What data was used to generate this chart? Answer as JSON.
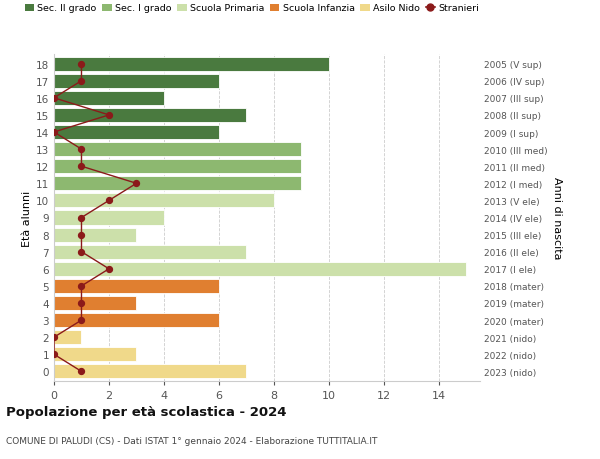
{
  "ages": [
    0,
    1,
    2,
    3,
    4,
    5,
    6,
    7,
    8,
    9,
    10,
    11,
    12,
    13,
    14,
    15,
    16,
    17,
    18
  ],
  "right_labels": [
    "2023 (nido)",
    "2022 (nido)",
    "2021 (nido)",
    "2020 (mater)",
    "2019 (mater)",
    "2018 (mater)",
    "2017 (I ele)",
    "2016 (II ele)",
    "2015 (III ele)",
    "2014 (IV ele)",
    "2013 (V ele)",
    "2012 (I med)",
    "2011 (II med)",
    "2010 (III med)",
    "2009 (I sup)",
    "2008 (II sup)",
    "2007 (III sup)",
    "2006 (IV sup)",
    "2005 (V sup)"
  ],
  "bar_values": [
    7,
    3,
    1,
    6,
    3,
    6,
    15,
    7,
    3,
    4,
    8,
    9,
    9,
    9,
    6,
    7,
    4,
    6,
    10
  ],
  "stranieri_values": [
    1,
    0,
    0,
    1,
    1,
    1,
    2,
    1,
    1,
    1,
    2,
    3,
    1,
    1,
    0,
    2,
    0,
    1,
    1
  ],
  "bar_colors": [
    "#f0d98a",
    "#f0d98a",
    "#f0d98a",
    "#e07f30",
    "#e07f30",
    "#e07f30",
    "#cce0aa",
    "#cce0aa",
    "#cce0aa",
    "#cce0aa",
    "#cce0aa",
    "#8db870",
    "#8db870",
    "#8db870",
    "#4a7a3f",
    "#4a7a3f",
    "#4a7a3f",
    "#4a7a3f",
    "#4a7a3f"
  ],
  "legend_labels": [
    "Sec. II grado",
    "Sec. I grado",
    "Scuola Primaria",
    "Scuola Infanzia",
    "Asilo Nido",
    "Stranieri"
  ],
  "legend_colors": [
    "#4a7a3f",
    "#8db870",
    "#cce0aa",
    "#e07f30",
    "#f0d98a",
    "#8b1a1a"
  ],
  "stranieri_color": "#8b1a1a",
  "title": "Popolazione per età scolastica - 2024",
  "subtitle": "COMUNE DI PALUDI (CS) - Dati ISTAT 1° gennaio 2024 - Elaborazione TUTTITALIA.IT",
  "ylabel": "Età alunni",
  "right_ylabel": "Anni di nascita",
  "xlabel_vals": [
    0,
    2,
    4,
    6,
    8,
    10,
    12,
    14
  ],
  "xlim": [
    0,
    15.5
  ],
  "background_color": "#ffffff",
  "grid_color": "#cccccc"
}
